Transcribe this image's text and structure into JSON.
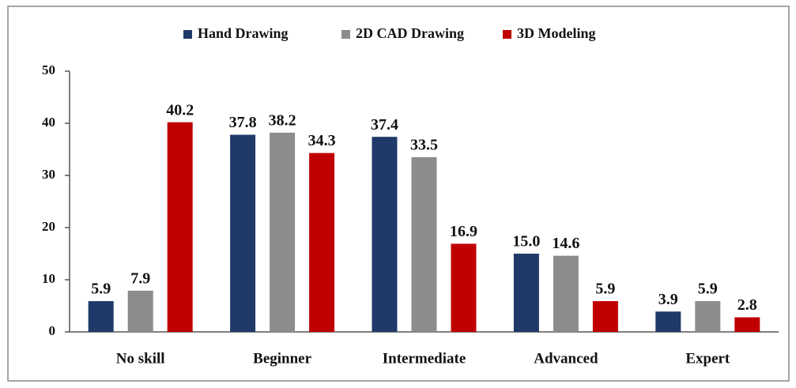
{
  "chart_data": {
    "type": "bar",
    "categories": [
      "No skill",
      "Beginner",
      "Intermediate",
      "Advanced",
      "Expert"
    ],
    "series": [
      {
        "name": "Hand Drawing",
        "color": "#1f3a68",
        "values": [
          5.9,
          37.8,
          37.4,
          15.0,
          3.9
        ],
        "value_labels": [
          "5.9",
          "37.8",
          "37.4",
          "15.0",
          "3.9"
        ]
      },
      {
        "name": "2D CAD Drawing",
        "color": "#8c8c8c",
        "values": [
          7.9,
          38.2,
          33.5,
          14.6,
          5.9
        ],
        "value_labels": [
          "7.9",
          "38.2",
          "33.5",
          "14.6",
          "5.9"
        ]
      },
      {
        "name": "3D Modeling",
        "color": "#c00000",
        "values": [
          40.2,
          34.3,
          16.9,
          5.9,
          2.8
        ],
        "value_labels": [
          "40.2",
          "34.3",
          "16.9",
          "5.9",
          "2.8"
        ]
      }
    ],
    "ylim": [
      0,
      50
    ],
    "yticks": [
      0,
      10,
      20,
      30,
      40,
      50
    ],
    "grid": false,
    "legend": "top"
  }
}
